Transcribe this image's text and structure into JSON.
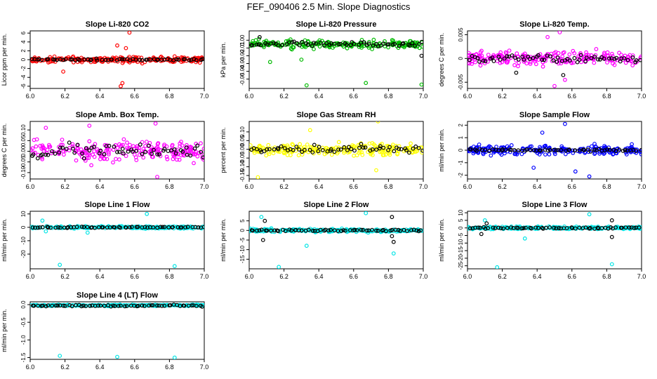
{
  "page": {
    "title": "FEF_090406  2.5 Min. Slope Diagnostics"
  },
  "chart_data": [
    {
      "type": "scatter",
      "title": "Slope Li-820 CO2",
      "ylabel": "Licor ppm per min.",
      "xlim": [
        6.0,
        7.0
      ],
      "ylim": [
        -6.5,
        6.5
      ],
      "xticks": [
        6.0,
        6.2,
        6.4,
        6.6,
        6.8,
        7.0
      ],
      "xtick_labels": [
        "6.0",
        "6.2",
        "6.4",
        "6.6",
        "6.8",
        "7.0"
      ],
      "yticks": [
        -6,
        -4,
        -2,
        0,
        2,
        4,
        6
      ],
      "ytick_labels": [
        "-6",
        "-4",
        "-2",
        "0",
        "2",
        "4",
        "6"
      ],
      "series": [
        {
          "color": "#ff0000",
          "center": 0.0,
          "spread": 0.9,
          "noise": 0.15,
          "outliers": [
            [
              6.52,
              -6.0
            ],
            [
              6.53,
              -5.3
            ],
            [
              6.55,
              2.6
            ],
            [
              6.57,
              6.1
            ],
            [
              6.5,
              3.2
            ],
            [
              6.19,
              -2.7
            ]
          ]
        },
        {
          "color": "#000000",
          "center": 0.0,
          "spread": 0.25,
          "noise": 0.1,
          "outliers": []
        }
      ]
    },
    {
      "type": "scatter",
      "title": "Slope Li-820 Pressure",
      "ylabel": "kPa per min.",
      "xlim": [
        6.0,
        7.0
      ],
      "ylim": [
        -0.062,
        0.012
      ],
      "xticks": [
        6.0,
        6.2,
        6.4,
        6.6,
        6.8,
        7.0
      ],
      "xtick_labels": [
        "6.0",
        "6.2",
        "6.4",
        "6.6",
        "6.8",
        "7.0"
      ],
      "yticks": [
        -0.05,
        -0.04,
        -0.03,
        -0.02,
        -0.01,
        0.0
      ],
      "ytick_labels": [
        "-0.05",
        "-0.04",
        "-0.03",
        "-0.02",
        "-0.01",
        "0.00"
      ],
      "series": [
        {
          "color": "#00bb00",
          "center": -0.005,
          "spread": 0.007,
          "noise": 0.002,
          "outliers": [
            [
              6.33,
              -0.058
            ],
            [
              6.67,
              -0.055
            ],
            [
              6.99,
              -0.057
            ],
            [
              6.12,
              -0.028
            ],
            [
              6.3,
              -0.025
            ]
          ]
        },
        {
          "color": "#000000",
          "center": -0.005,
          "spread": 0.004,
          "noise": 0.001,
          "outliers": [
            [
              6.99,
              -0.02
            ],
            [
              6.06,
              0.004
            ]
          ]
        }
      ]
    },
    {
      "type": "scatter",
      "title": "Slope Li-820 Temp.",
      "ylabel": "degrees C per min.",
      "xlim": [
        6.0,
        7.0
      ],
      "ylim": [
        -0.0063,
        0.0058
      ],
      "xticks": [
        6.0,
        6.2,
        6.4,
        6.6,
        6.8,
        7.0
      ],
      "xtick_labels": [
        "6.0",
        "6.2",
        "6.4",
        "6.6",
        "6.8",
        "7.0"
      ],
      "yticks": [
        -0.005,
        0.0,
        0.005
      ],
      "ytick_labels": [
        "-0.005",
        "0",
        "0.005"
      ],
      "series": [
        {
          "color": "#ff00ff",
          "center": 0.0,
          "spread": 0.0022,
          "noise": 0.0004,
          "outliers": [
            [
              6.53,
              0.0055
            ],
            [
              6.5,
              -0.0058
            ],
            [
              6.56,
              -0.0045
            ],
            [
              6.46,
              0.0045
            ]
          ]
        },
        {
          "color": "#000000",
          "center": 0.0,
          "spread": 0.0012,
          "noise": 0.0003,
          "outliers": [
            [
              6.55,
              -0.0035
            ],
            [
              6.28,
              -0.003
            ]
          ]
        }
      ]
    },
    {
      "type": "scatter",
      "title": "Slope Amb. Box Temp.",
      "ylabel": "degrees C per min.",
      "xlim": [
        6.0,
        7.0
      ],
      "ylim": [
        -0.13,
        0.14
      ],
      "xticks": [
        6.0,
        6.2,
        6.4,
        6.6,
        6.8,
        7.0
      ],
      "xtick_labels": [
        "6.0",
        "6.2",
        "6.4",
        "6.6",
        "6.8",
        "7.0"
      ],
      "yticks": [
        -0.1,
        -0.05,
        0.0,
        0.05,
        0.1
      ],
      "ytick_labels": [
        "-0.10",
        "-0.05",
        "0.00",
        "0.05",
        "0.10"
      ],
      "series": [
        {
          "color": "#ff00ff",
          "center": 0.0,
          "spread": 0.07,
          "noise": 0.02,
          "outliers": [
            [
              6.72,
              0.13
            ],
            [
              6.73,
              -0.12
            ],
            [
              6.09,
              0.11
            ],
            [
              6.34,
              0.12
            ]
          ]
        },
        {
          "color": "#000000",
          "center": 0.0,
          "spread": 0.045,
          "noise": 0.01,
          "outliers": []
        }
      ]
    },
    {
      "type": "scatter",
      "title": "Slope Gas Stream RH",
      "ylabel": "percent per min.",
      "xlim": [
        6.0,
        7.0
      ],
      "ylim": [
        -0.17,
        0.16
      ],
      "xticks": [
        6.0,
        6.2,
        6.4,
        6.6,
        6.8,
        7.0
      ],
      "xtick_labels": [
        "6.0",
        "6.2",
        "6.4",
        "6.6",
        "6.8",
        "7.0"
      ],
      "yticks": [
        -0.15,
        -0.1,
        -0.05,
        0.0,
        0.05,
        0.1
      ],
      "ytick_labels": [
        "-0.15",
        "-0.10",
        "-0.05",
        "0.00",
        "0.05",
        "0.10"
      ],
      "series": [
        {
          "color": "#ffff00",
          "center": 0.0,
          "spread": 0.045,
          "noise": 0.01,
          "outliers": [
            [
              6.74,
              0.16
            ],
            [
              6.05,
              -0.16
            ],
            [
              6.35,
              0.11
            ],
            [
              6.73,
              -0.12
            ]
          ]
        },
        {
          "color": "#000000",
          "center": 0.0,
          "spread": 0.03,
          "noise": 0.01,
          "outliers": []
        }
      ]
    },
    {
      "type": "scatter",
      "title": "Slope Sample Flow",
      "ylabel": "ml/min per min.",
      "xlim": [
        6.0,
        7.0
      ],
      "ylim": [
        -2.3,
        2.3
      ],
      "xticks": [
        6.0,
        6.2,
        6.4,
        6.6,
        6.8,
        7.0
      ],
      "xtick_labels": [
        "6.0",
        "6.2",
        "6.4",
        "6.6",
        "6.8",
        "7.0"
      ],
      "yticks": [
        -2,
        -1,
        0,
        1,
        2
      ],
      "ytick_labels": [
        "-2",
        "-1",
        "0",
        "1",
        "2"
      ],
      "series": [
        {
          "color": "#0000ff",
          "center": 0.0,
          "spread": 0.55,
          "noise": 0.12,
          "outliers": [
            [
              6.56,
              2.1
            ],
            [
              6.7,
              -2.1
            ],
            [
              6.62,
              -1.7
            ],
            [
              6.43,
              1.4
            ],
            [
              6.38,
              -1.4
            ]
          ]
        },
        {
          "color": "#000000",
          "center": 0.0,
          "spread": 0.12,
          "noise": 0.05,
          "outliers": []
        }
      ]
    },
    {
      "type": "scatter",
      "title": "Slope Line 1 Flow",
      "ylabel": "ml/min per min.",
      "xlim": [
        6.0,
        7.0
      ],
      "ylim": [
        -31,
        12
      ],
      "xticks": [
        6.0,
        6.2,
        6.4,
        6.6,
        6.8,
        7.0
      ],
      "xtick_labels": [
        "6.0",
        "6.2",
        "6.4",
        "6.6",
        "6.8",
        "7.0"
      ],
      "yticks": [
        -20,
        -10,
        0,
        10
      ],
      "ytick_labels": [
        "-20",
        "-10",
        "0",
        "10"
      ],
      "series": [
        {
          "color": "#00e5e5",
          "center": 0.0,
          "spread": 1.2,
          "noise": 0.3,
          "outliers": [
            [
              6.17,
              -28.0
            ],
            [
              6.83,
              -29.0
            ],
            [
              6.67,
              10.0
            ],
            [
              6.07,
              5.0
            ],
            [
              6.33,
              -4.0
            ],
            [
              6.09,
              -3.0
            ]
          ]
        },
        {
          "color": "#000000",
          "center": 0.0,
          "spread": 0.6,
          "noise": 0.2,
          "outliers": []
        }
      ]
    },
    {
      "type": "scatter",
      "title": "Slope Line 2 Flow",
      "ylabel": "ml/min per min.",
      "xlim": [
        6.0,
        7.0
      ],
      "ylim": [
        -20,
        10
      ],
      "xticks": [
        6.0,
        6.2,
        6.4,
        6.6,
        6.8,
        7.0
      ],
      "xtick_labels": [
        "6.0",
        "6.2",
        "6.4",
        "6.6",
        "6.8",
        "7.0"
      ],
      "yticks": [
        -15,
        -10,
        -5,
        0,
        5
      ],
      "ytick_labels": [
        "-15",
        "-10",
        "-5",
        "0",
        "5"
      ],
      "series": [
        {
          "color": "#00e5e5",
          "center": 0.0,
          "spread": 1.2,
          "noise": 0.3,
          "outliers": [
            [
              6.17,
              -19.0
            ],
            [
              6.83,
              -12.0
            ],
            [
              6.33,
              -8.0
            ],
            [
              6.67,
              9.0
            ],
            [
              6.07,
              7.0
            ]
          ]
        },
        {
          "color": "#000000",
          "center": 0.0,
          "spread": 0.6,
          "noise": 0.2,
          "outliers": [
            [
              6.82,
              7.0
            ],
            [
              6.83,
              -6.0
            ],
            [
              6.82,
              -3.0
            ],
            [
              6.08,
              -5.0
            ],
            [
              6.09,
              5.0
            ]
          ]
        }
      ]
    },
    {
      "type": "scatter",
      "title": "Slope Line 3 Flow",
      "ylabel": "ml/min per min.",
      "xlim": [
        6.0,
        7.0
      ],
      "ylim": [
        -27,
        11
      ],
      "xticks": [
        6.0,
        6.2,
        6.4,
        6.6,
        6.8,
        7.0
      ],
      "xtick_labels": [
        "6.0",
        "6.2",
        "6.4",
        "6.6",
        "6.8",
        "7.0"
      ],
      "yticks": [
        -25,
        -20,
        -15,
        -10,
        -5,
        0,
        5,
        10
      ],
      "ytick_labels": [
        "-25",
        "-20",
        "-15",
        "-10",
        "-5",
        "0",
        "5",
        "10"
      ],
      "series": [
        {
          "color": "#00e5e5",
          "center": 0.0,
          "spread": 1.2,
          "noise": 0.3,
          "outliers": [
            [
              6.17,
              -26.0
            ],
            [
              6.83,
              -24.0
            ],
            [
              6.33,
              -7.0
            ],
            [
              6.7,
              9.0
            ],
            [
              6.1,
              5.0
            ]
          ]
        },
        {
          "color": "#000000",
          "center": 0.0,
          "spread": 0.7,
          "noise": 0.2,
          "outliers": [
            [
              6.83,
              -6.0
            ],
            [
              6.83,
              5.0
            ],
            [
              6.08,
              -4.0
            ],
            [
              6.11,
              3.0
            ]
          ]
        }
      ]
    },
    {
      "type": "scatter",
      "title": "Slope Line 4 (LT) Flow",
      "ylabel": "ml/min per min.",
      "xlim": [
        6.0,
        7.0
      ],
      "ylim": [
        -1.55,
        0.08
      ],
      "xticks": [
        6.0,
        6.2,
        6.4,
        6.6,
        6.8,
        7.0
      ],
      "xtick_labels": [
        "6.0",
        "6.2",
        "6.4",
        "6.6",
        "6.8",
        "7.0"
      ],
      "yticks": [
        -1.5,
        -1.0,
        -0.5,
        0.0
      ],
      "ytick_labels": [
        "-1.5",
        "-1.0",
        "-0.5",
        "0.0"
      ],
      "series": [
        {
          "color": "#00e5e5",
          "center": -0.02,
          "spread": 0.025,
          "noise": 0.01,
          "outliers": [
            [
              6.17,
              -1.45
            ],
            [
              6.5,
              -1.48
            ],
            [
              6.83,
              -1.5
            ]
          ]
        },
        {
          "color": "#000000",
          "center": -0.03,
          "spread": 0.03,
          "noise": 0.01,
          "outliers": []
        }
      ]
    }
  ]
}
